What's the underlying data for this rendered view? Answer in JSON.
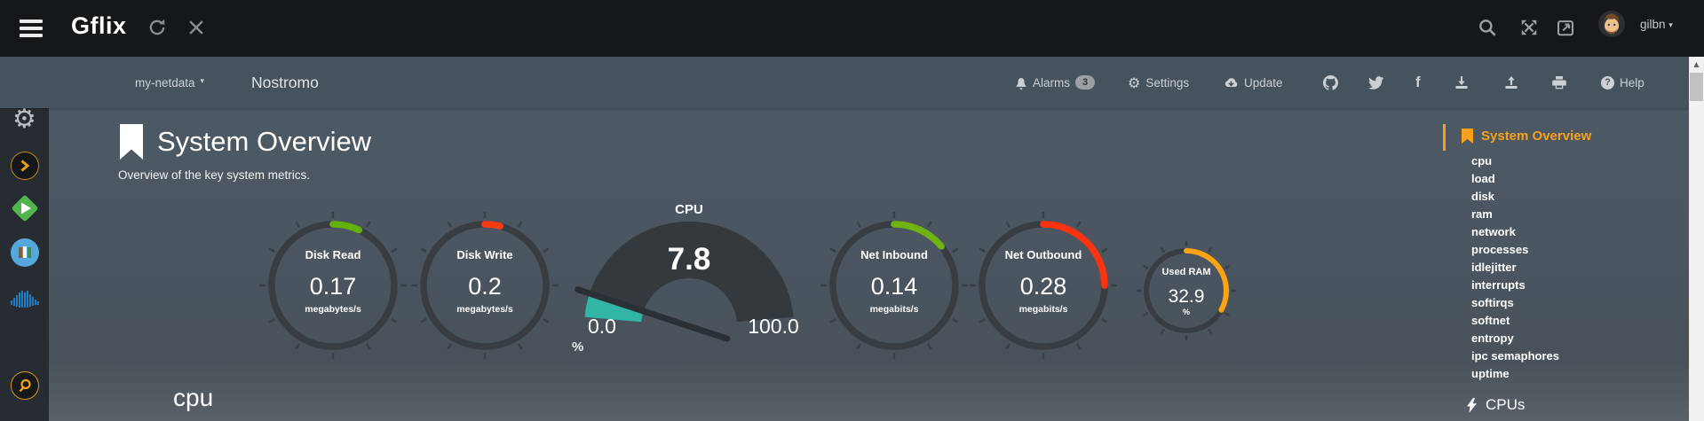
{
  "topbar": {
    "title": "Gflix",
    "username": "gilbn",
    "caret": "▾"
  },
  "navbar": {
    "server": "my-netdata",
    "server_caret": "▾",
    "hostname": "Nostromo",
    "alarms_label": "Alarms",
    "alarms_count": "3",
    "settings_label": "Settings",
    "update_label": "Update",
    "help_label": "Help",
    "help_qmark": "?"
  },
  "main": {
    "section_title": "System Overview",
    "section_subtitle": "Overview of the key system metrics.",
    "next_section_title": "cpu"
  },
  "gauges": [
    {
      "label": "Disk Read",
      "value": "0.17",
      "units": "megabytes/s",
      "percent": 7,
      "color": "#64b10e"
    },
    {
      "label": "Disk Write",
      "value": "0.2",
      "units": "megabytes/s",
      "percent": 4,
      "color": "#f53b10"
    },
    {
      "label": "Net Inbound",
      "value": "0.14",
      "units": "megabits/s",
      "percent": 14,
      "color": "#6fb211"
    },
    {
      "label": "Net Outbound",
      "value": "0.28",
      "units": "megabits/s",
      "percent": 25,
      "color": "#fb3310"
    },
    {
      "label": "Used RAM",
      "value": "32.9",
      "units": "%",
      "percent": 33,
      "color": "#fba313"
    }
  ],
  "cpu_gauge": {
    "title": "CPU",
    "value": "7.8",
    "min": "0.0",
    "max": "100.0",
    "units": "%",
    "percent": 7.8,
    "fill_color": "#33b5a5",
    "track_color": "#34393e",
    "needle_color": "#2b3036"
  },
  "menu": {
    "active_label": "System Overview",
    "items": [
      "cpu",
      "load",
      "disk",
      "ram",
      "network",
      "processes",
      "idlejitter",
      "interrupts",
      "softirqs",
      "softnet",
      "entropy",
      "ipc semaphores",
      "uptime"
    ],
    "subsection_label": "CPUs",
    "accent_color": "#f9a11b"
  }
}
